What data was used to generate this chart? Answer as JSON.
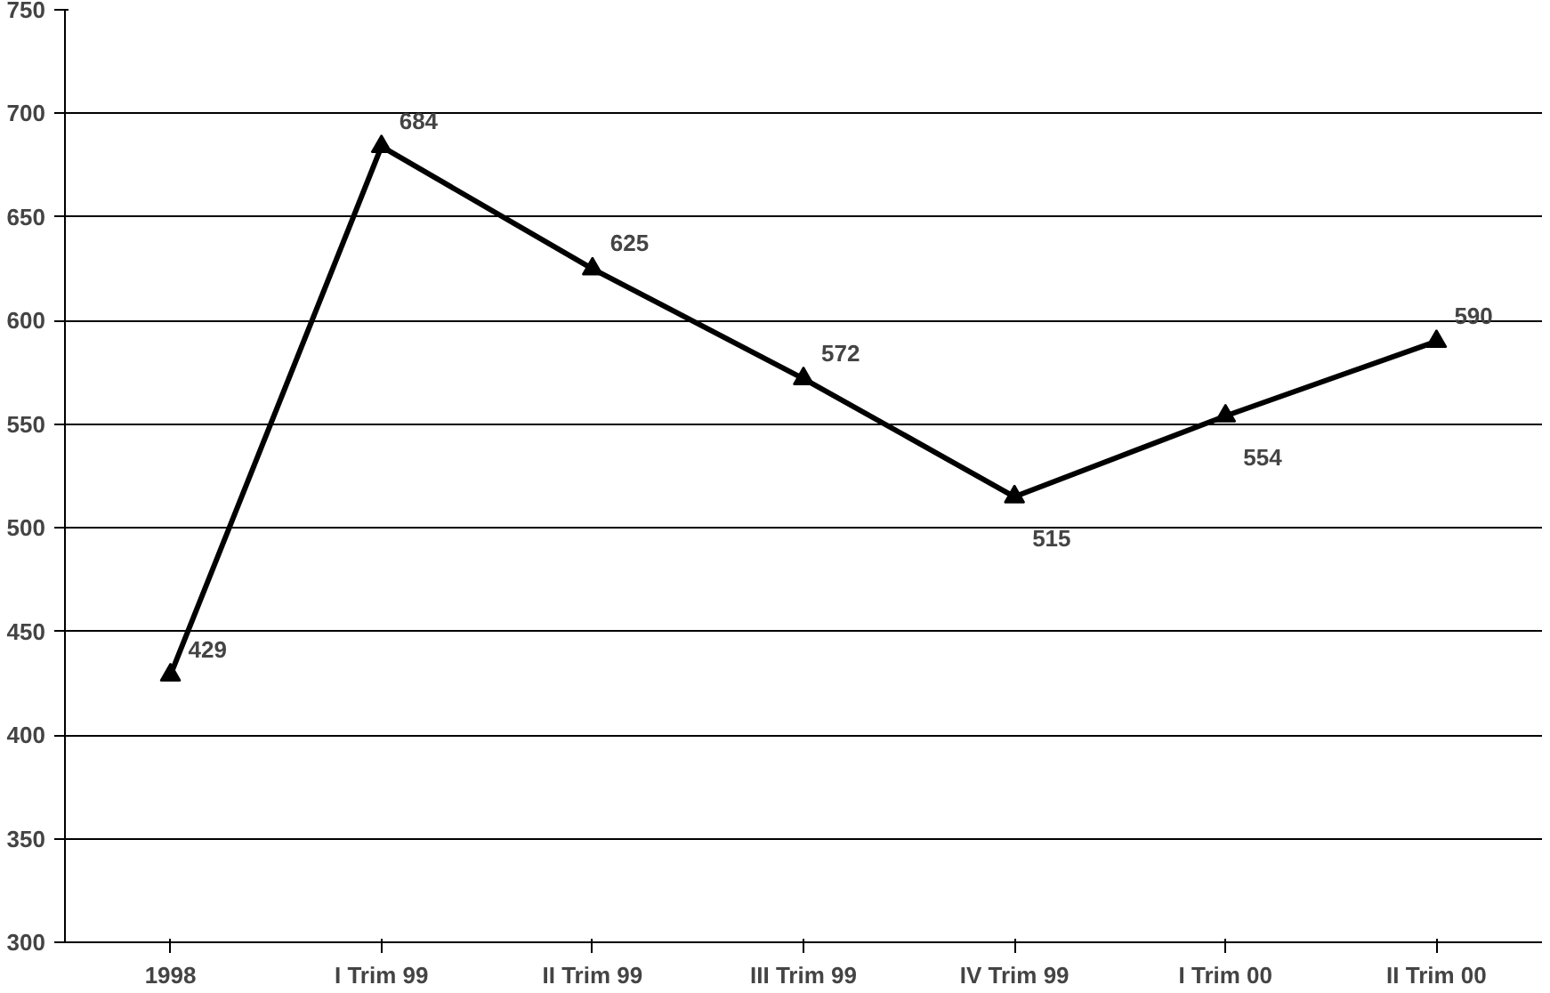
{
  "chart_data": {
    "type": "line",
    "categories": [
      "1998",
      "I Trim 99",
      "II Trim 99",
      "III Trim 99",
      "IV Trim 99",
      "I Trim 00",
      "II Trim 00"
    ],
    "series": [
      {
        "color": "#000000",
        "values": [
          429,
          684,
          625,
          572,
          515,
          554,
          590
        ]
      }
    ],
    "ylim": [
      300,
      750
    ],
    "yticks": [
      300,
      350,
      400,
      450,
      500,
      550,
      600,
      650,
      700,
      750
    ],
    "grid": "y",
    "marker": "triangle",
    "line_style": "solid",
    "data_labels": true
  }
}
